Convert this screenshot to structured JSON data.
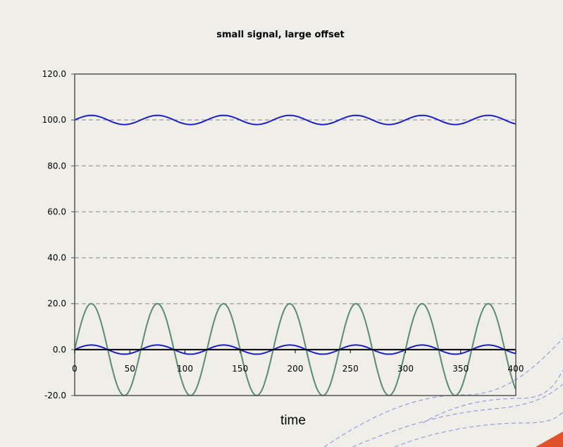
{
  "chart_data": {
    "type": "line",
    "title": "small signal, large offset",
    "xlabel": "time",
    "ylabel": "",
    "xlim": [
      0,
      400
    ],
    "ylim": [
      -20,
      120
    ],
    "x_ticks": [
      "0",
      "50",
      "100",
      "150",
      "200",
      "250",
      "300",
      "350",
      "400"
    ],
    "y_ticks": [
      "-20.0",
      "0.0",
      "20.0",
      "40.0",
      "60.0",
      "80.0",
      "100.0",
      "120.0"
    ],
    "grid": "horizontal-dashed",
    "series": [
      {
        "color": "#1f1fc8",
        "period": 60,
        "offset": 100,
        "amplitude": 2,
        "phase_start": 0
      },
      {
        "color": "#1f1fc8",
        "period": 60,
        "offset": 0,
        "amplitude": 2,
        "phase_start": 0
      },
      {
        "color": "#5a8c6e",
        "period": 60,
        "offset": 0,
        "amplitude": 20,
        "phase_start": 0
      },
      {
        "color": "#000000",
        "period": 0,
        "offset": 0,
        "amplitude": 0,
        "phase_start": 0
      }
    ]
  },
  "colors": {
    "background": "#efeee9",
    "axis": "#555555",
    "grid": "#a8a8a8",
    "decor_lines": "#9a9ae0",
    "decor_corner": "#e0522a"
  }
}
